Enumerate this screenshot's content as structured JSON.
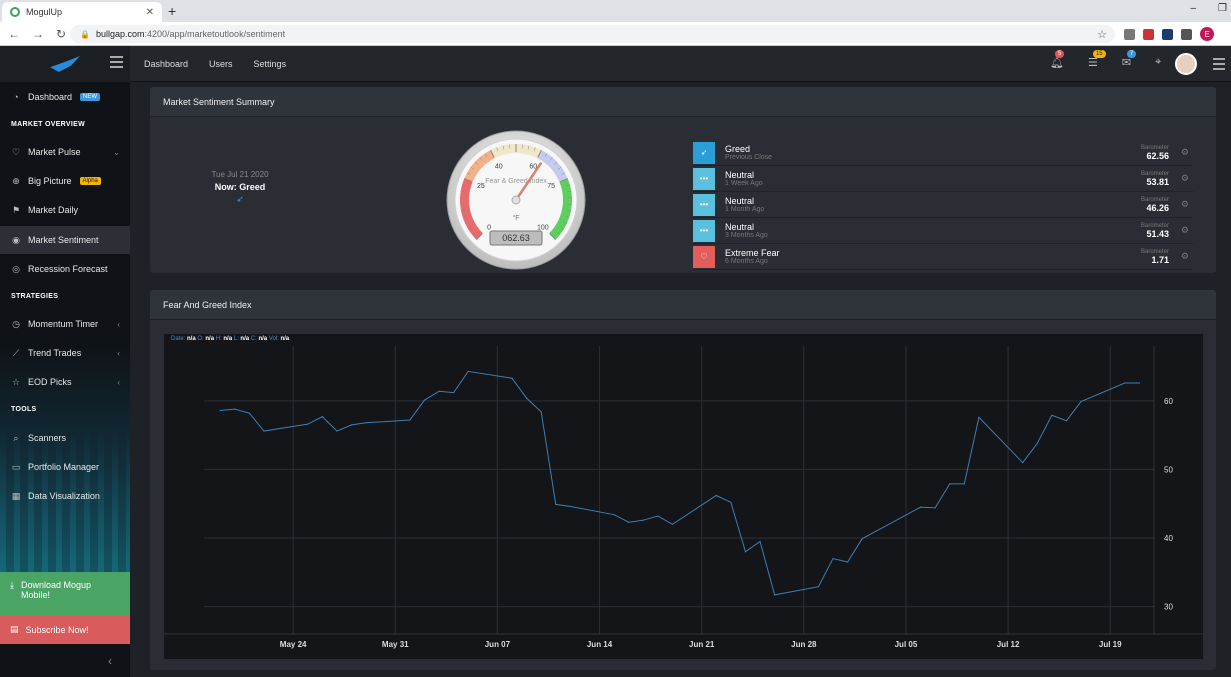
{
  "browser": {
    "tab_title": "MogulUp",
    "url_host": "bullgap.com",
    "url_path": ":4200/app/marketoutlook/sentiment",
    "profile_initial": "E"
  },
  "header": {
    "nav": [
      "Dashboard",
      "Users",
      "Settings"
    ],
    "badges": {
      "bell": "5",
      "list": "15",
      "tasks": "7"
    }
  },
  "sidebar": {
    "dashboard": "Dashboard",
    "dashboard_tag": "NEW",
    "section_market": "MARKET OVERVIEW",
    "market_pulse": "Market Pulse",
    "big_picture": "Big Picture",
    "big_picture_tag": "Alpha",
    "market_daily": "Market Daily",
    "market_sentiment": "Market Sentiment",
    "recession_forecast": "Recession Forecast",
    "section_strategies": "STRATEGIES",
    "momentum_timer": "Momentum Timer",
    "trend_trades": "Trend Trades",
    "eod_picks": "EOD Picks",
    "section_tools": "TOOLS",
    "scanners": "Scanners",
    "portfolio_manager": "Portfolio Manager",
    "data_visualization": "Data Visualization",
    "download": "Download Mogup Mobile!",
    "subscribe": "Subscribe Now!"
  },
  "summary": {
    "title": "Market Sentiment Summary",
    "date": "Tue Jul 21 2020",
    "now": "Now: Greed",
    "gauge": {
      "title": "Fear & Greed Index",
      "unit": "°F",
      "ticks": [
        "0",
        "25",
        "40",
        "60",
        "75",
        "100"
      ],
      "value": 62.63,
      "display": "062.63"
    },
    "rows": [
      {
        "label": "Greed",
        "period": "Previous Close",
        "barometer": "Barometer",
        "value": "62.56",
        "color": "#2a9fd6"
      },
      {
        "label": "Neutral",
        "period": "1 Week Ago",
        "barometer": "Barometer",
        "value": "53.81",
        "color": "#5bc0de"
      },
      {
        "label": "Neutral",
        "period": "1 Month Ago",
        "barometer": "Barometer",
        "value": "46.26",
        "color": "#5bc0de"
      },
      {
        "label": "Neutral",
        "period": "3 Months Ago",
        "barometer": "Barometer",
        "value": "51.43",
        "color": "#5bc0de"
      },
      {
        "label": "Extreme Fear",
        "period": "6 Months Ago",
        "barometer": "Barometer",
        "value": "1.71",
        "color": "#e35d5d"
      }
    ]
  },
  "chart_panel": {
    "title": "Fear And Greed Index",
    "legend": {
      "date": "Date:",
      "o": "O:",
      "h": "H:",
      "l": "L:",
      "c": "C:",
      "vol": "Vol:",
      "na": "n/a"
    }
  },
  "chart_data": {
    "type": "line",
    "title": "Fear And Greed Index",
    "x_ticks": [
      "May 24",
      "May 31",
      "Jun 07",
      "Jun 14",
      "Jun 21",
      "Jun 28",
      "Jul 05",
      "Jul 12",
      "Jul 19"
    ],
    "y_ticks": [
      30,
      40,
      50,
      60
    ],
    "ylim": [
      26,
      68
    ],
    "grid": true,
    "line_color": "#3d7fb5",
    "series": [
      {
        "x": [
          "2020-05-19",
          "2020-05-20",
          "2020-05-21",
          "2020-05-22",
          "2020-05-25",
          "2020-05-26",
          "2020-05-27",
          "2020-05-28",
          "2020-05-29",
          "2020-06-01",
          "2020-06-02",
          "2020-06-03",
          "2020-06-04",
          "2020-06-05",
          "2020-06-08",
          "2020-06-09",
          "2020-06-10",
          "2020-06-11",
          "2020-06-12",
          "2020-06-15",
          "2020-06-16",
          "2020-06-17",
          "2020-06-18",
          "2020-06-19",
          "2020-06-22",
          "2020-06-23",
          "2020-06-24",
          "2020-06-25",
          "2020-06-26",
          "2020-06-29",
          "2020-06-30",
          "2020-07-01",
          "2020-07-02",
          "2020-07-06",
          "2020-07-07",
          "2020-07-08",
          "2020-07-09",
          "2020-07-10",
          "2020-07-13",
          "2020-07-14",
          "2020-07-15",
          "2020-07-16",
          "2020-07-17",
          "2020-07-20",
          "2020-07-21"
        ],
        "values": [
          58.6,
          58.8,
          58.2,
          55.6,
          56.6,
          57.7,
          55.6,
          56.5,
          56.8,
          57.2,
          60.1,
          61.4,
          61.2,
          64.3,
          63.3,
          60.4,
          58.4,
          44.9,
          44.6,
          43.4,
          42.3,
          42.6,
          43.2,
          42.0,
          46.2,
          45.2,
          38.0,
          39.5,
          31.7,
          32.9,
          37.0,
          36.5,
          39.9,
          44.5,
          44.4,
          47.9,
          47.9,
          57.6,
          51.0,
          53.8,
          57.9,
          57.1,
          59.9,
          62.6,
          62.6
        ]
      }
    ]
  }
}
